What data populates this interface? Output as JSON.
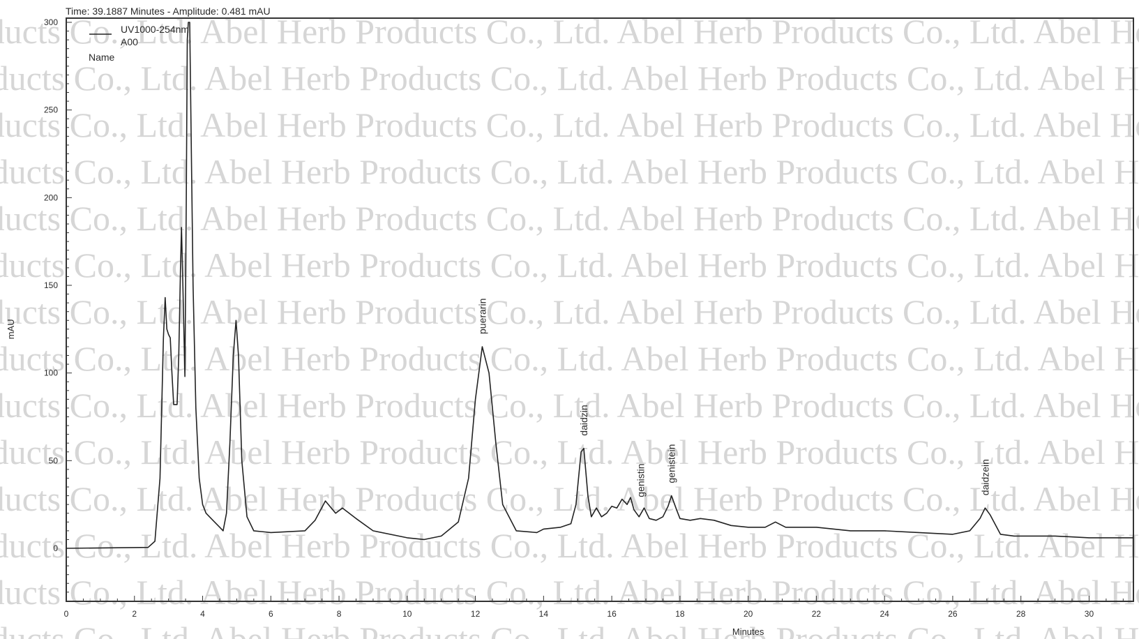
{
  "chart_data": {
    "type": "line",
    "header": "Time:  39.1887 Minutes - Amplitude:  0.481 mAU",
    "xlabel": "Minutes",
    "ylabel": "mAU",
    "xlim": [
      0,
      31.3
    ],
    "ylim": [
      -30,
      300
    ],
    "x_ticks": [
      0,
      2,
      4,
      6,
      8,
      10,
      12,
      14,
      16,
      18,
      20,
      22,
      24,
      26,
      28,
      30
    ],
    "y_ticks": [
      0,
      50,
      100,
      150,
      200,
      250,
      300
    ],
    "grid": false,
    "legend": {
      "placement": "top-left",
      "entries": [
        "UV1000-254nm",
        "A00"
      ],
      "name_label": "Name"
    },
    "series": [
      {
        "name": "UV1000-254nm",
        "points": [
          [
            0,
            0
          ],
          [
            2.4,
            0.5
          ],
          [
            2.6,
            4
          ],
          [
            2.75,
            40
          ],
          [
            2.85,
            120
          ],
          [
            2.9,
            143
          ],
          [
            2.95,
            125
          ],
          [
            3.0,
            122
          ],
          [
            3.05,
            120
          ],
          [
            3.1,
            100
          ],
          [
            3.15,
            82
          ],
          [
            3.25,
            82
          ],
          [
            3.3,
            110
          ],
          [
            3.35,
            160
          ],
          [
            3.38,
            183
          ],
          [
            3.42,
            150
          ],
          [
            3.48,
            98
          ],
          [
            3.52,
            200
          ],
          [
            3.55,
            290
          ],
          [
            3.58,
            300
          ],
          [
            3.62,
            300
          ],
          [
            3.66,
            240
          ],
          [
            3.72,
            150
          ],
          [
            3.8,
            80
          ],
          [
            3.9,
            40
          ],
          [
            4.0,
            25
          ],
          [
            4.1,
            20
          ],
          [
            4.3,
            16
          ],
          [
            4.5,
            12
          ],
          [
            4.6,
            10
          ],
          [
            4.7,
            20
          ],
          [
            4.8,
            60
          ],
          [
            4.9,
            110
          ],
          [
            4.98,
            130
          ],
          [
            5.05,
            110
          ],
          [
            5.15,
            50
          ],
          [
            5.3,
            18
          ],
          [
            5.5,
            10
          ],
          [
            6.0,
            9
          ],
          [
            7.0,
            10
          ],
          [
            7.3,
            16
          ],
          [
            7.6,
            27
          ],
          [
            7.9,
            20
          ],
          [
            8.1,
            23
          ],
          [
            8.5,
            17
          ],
          [
            9.0,
            10
          ],
          [
            10.0,
            6
          ],
          [
            10.5,
            5
          ],
          [
            11.0,
            7
          ],
          [
            11.5,
            15
          ],
          [
            11.8,
            40
          ],
          [
            12.0,
            85
          ],
          [
            12.2,
            115
          ],
          [
            12.4,
            100
          ],
          [
            12.6,
            60
          ],
          [
            12.8,
            25
          ],
          [
            13.2,
            10
          ],
          [
            13.8,
            9
          ],
          [
            14.0,
            11
          ],
          [
            14.5,
            12
          ],
          [
            14.8,
            14
          ],
          [
            14.95,
            25
          ],
          [
            15.1,
            55
          ],
          [
            15.18,
            57
          ],
          [
            15.3,
            30
          ],
          [
            15.4,
            18
          ],
          [
            15.55,
            23
          ],
          [
            15.7,
            18
          ],
          [
            15.85,
            20
          ],
          [
            16.0,
            24
          ],
          [
            16.15,
            23
          ],
          [
            16.3,
            28
          ],
          [
            16.45,
            25
          ],
          [
            16.55,
            29
          ],
          [
            16.65,
            22
          ],
          [
            16.8,
            18
          ],
          [
            16.95,
            23
          ],
          [
            17.1,
            17
          ],
          [
            17.3,
            16
          ],
          [
            17.5,
            18
          ],
          [
            17.65,
            24
          ],
          [
            17.75,
            30
          ],
          [
            17.9,
            22
          ],
          [
            18.0,
            17
          ],
          [
            18.3,
            16
          ],
          [
            18.6,
            17
          ],
          [
            19.0,
            16
          ],
          [
            19.5,
            13
          ],
          [
            20.0,
            12
          ],
          [
            20.5,
            12
          ],
          [
            20.8,
            15
          ],
          [
            21.1,
            12
          ],
          [
            21.5,
            12
          ],
          [
            22.0,
            12
          ],
          [
            23.0,
            10
          ],
          [
            24.0,
            10
          ],
          [
            25.0,
            9
          ],
          [
            26.0,
            8
          ],
          [
            26.5,
            10
          ],
          [
            26.8,
            17
          ],
          [
            26.95,
            23
          ],
          [
            27.1,
            19
          ],
          [
            27.4,
            8
          ],
          [
            27.8,
            7
          ],
          [
            29.0,
            7
          ],
          [
            30.0,
            6
          ],
          [
            31.3,
            6
          ]
        ]
      }
    ],
    "annotations": [
      {
        "text": "puerarin",
        "x": 12.2,
        "y": 115
      },
      {
        "text": "daidzin",
        "x": 15.18,
        "y": 57
      },
      {
        "text": "genistin",
        "x": 16.85,
        "y": 22
      },
      {
        "text": "genistein",
        "x": 17.75,
        "y": 30
      },
      {
        "text": "daidzein",
        "x": 26.95,
        "y": 23
      }
    ],
    "watermark": "Abel Herb Products Co., Ltd."
  }
}
